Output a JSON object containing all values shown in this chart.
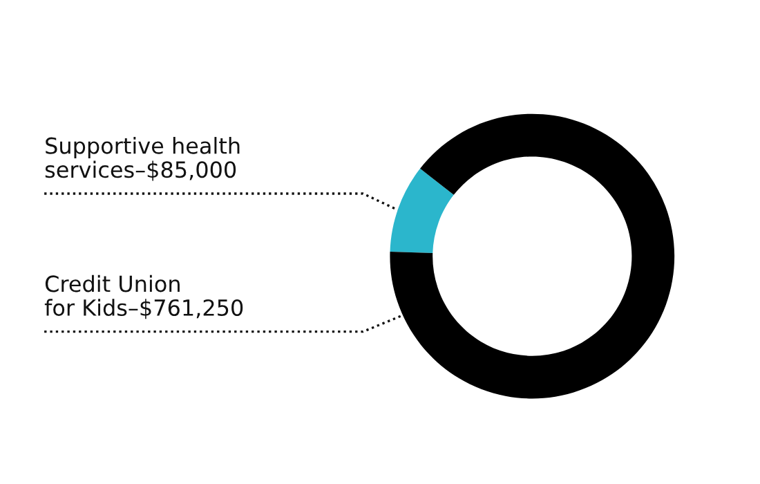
{
  "chart_data": {
    "type": "donut",
    "categories": [
      "Supportive health services",
      "Credit Union for Kids"
    ],
    "values": [
      85000,
      761250
    ],
    "value_labels": [
      "$85,000",
      "$761,250"
    ],
    "colors": [
      "#2bb6cc",
      "#000000"
    ],
    "legend": false
  }
}
